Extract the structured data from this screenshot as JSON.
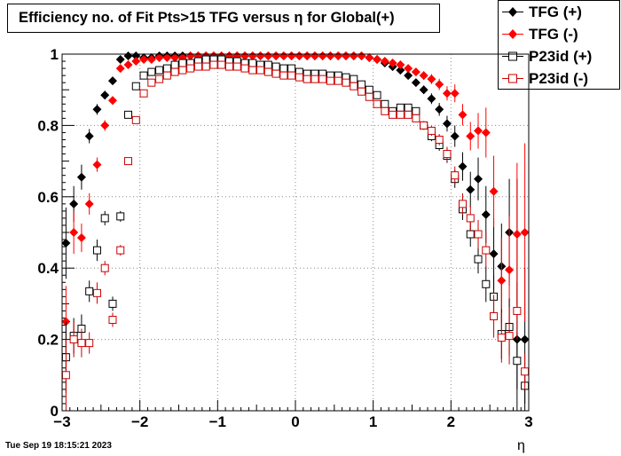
{
  "title": "Efficiency no. of Fit Pts>15 TFG versus η for Global(+)",
  "timestamp": "Tue Sep 19 18:15:21 2023",
  "chart_data": {
    "type": "scatter",
    "title": "Efficiency no. of Fit Pts>15 TFG versus η for Global(+)",
    "xlabel": "η",
    "ylabel": "",
    "xlim": [
      -3,
      3
    ],
    "ylim": [
      0,
      1.0
    ],
    "xticks": [
      "−3",
      "−2",
      "−1",
      "0",
      "1",
      "2",
      "3"
    ],
    "yticks": [
      "0",
      "0.2",
      "0.4",
      "0.6",
      "0.8",
      "1"
    ],
    "grid": true,
    "legend_position": "top-right",
    "series": [
      {
        "name": "TFG (+)",
        "marker": "filled-diamond",
        "color": "#000000",
        "x": [
          -2.95,
          -2.85,
          -2.75,
          -2.65,
          -2.55,
          -2.45,
          -2.35,
          -2.25,
          -2.15,
          -2.05,
          -1.95,
          -1.85,
          -1.75,
          -1.65,
          -1.55,
          -1.45,
          -1.35,
          -1.25,
          -1.15,
          -1.05,
          -0.95,
          -0.85,
          -0.75,
          -0.65,
          -0.55,
          -0.45,
          -0.35,
          -0.25,
          -0.15,
          -0.05,
          0.05,
          0.15,
          0.25,
          0.35,
          0.45,
          0.55,
          0.65,
          0.75,
          0.85,
          0.95,
          1.05,
          1.15,
          1.25,
          1.35,
          1.45,
          1.55,
          1.65,
          1.75,
          1.85,
          1.95,
          2.05,
          2.15,
          2.25,
          2.35,
          2.45,
          2.55,
          2.65,
          2.75,
          2.85,
          2.95
        ],
        "y": [
          0.47,
          0.58,
          0.655,
          0.77,
          0.845,
          0.885,
          0.925,
          0.985,
          0.995,
          0.995,
          0.99,
          0.99,
          0.995,
          0.995,
          0.995,
          0.995,
          0.995,
          0.995,
          0.995,
          0.995,
          0.995,
          0.995,
          0.995,
          0.995,
          0.995,
          0.995,
          0.995,
          0.995,
          0.995,
          0.995,
          0.995,
          0.995,
          0.995,
          0.995,
          0.995,
          0.995,
          0.995,
          0.995,
          0.995,
          0.99,
          0.985,
          0.975,
          0.965,
          0.955,
          0.94,
          0.92,
          0.9,
          0.875,
          0.845,
          0.805,
          0.77,
          0.685,
          0.62,
          0.65,
          0.55,
          0.44,
          0.405,
          0.5,
          0.2,
          0.2
        ],
        "err": [
          0.1,
          0.05,
          0.035,
          0.02,
          0.015,
          0.012,
          0.01,
          0.006,
          0.004,
          0.003,
          0.003,
          0.003,
          0.003,
          0.003,
          0.003,
          0.003,
          0.003,
          0.003,
          0.003,
          0.003,
          0.003,
          0.003,
          0.003,
          0.003,
          0.003,
          0.003,
          0.003,
          0.003,
          0.003,
          0.003,
          0.003,
          0.003,
          0.003,
          0.003,
          0.003,
          0.003,
          0.003,
          0.003,
          0.003,
          0.003,
          0.004,
          0.005,
          0.006,
          0.007,
          0.008,
          0.01,
          0.012,
          0.015,
          0.018,
          0.022,
          0.03,
          0.04,
          0.05,
          0.06,
          0.08,
          0.1,
          0.12,
          0.15,
          0.45,
          0.2
        ]
      },
      {
        "name": "TFG (-)",
        "marker": "filled-diamond",
        "color": "#ff0000",
        "x": [
          -2.95,
          -2.85,
          -2.75,
          -2.65,
          -2.55,
          -2.45,
          -2.35,
          -2.25,
          -2.15,
          -2.05,
          -1.95,
          -1.85,
          -1.75,
          -1.65,
          -1.55,
          -1.45,
          -1.35,
          -1.25,
          -1.15,
          -1.05,
          -0.95,
          -0.85,
          -0.75,
          -0.65,
          -0.55,
          -0.45,
          -0.35,
          -0.25,
          -0.15,
          -0.05,
          0.05,
          0.15,
          0.25,
          0.35,
          0.45,
          0.55,
          0.65,
          0.75,
          0.85,
          0.95,
          1.05,
          1.15,
          1.25,
          1.35,
          1.45,
          1.55,
          1.65,
          1.75,
          1.85,
          1.95,
          2.05,
          2.15,
          2.25,
          2.35,
          2.45,
          2.55,
          2.65,
          2.75,
          2.85,
          2.95
        ],
        "y": [
          0.25,
          0.5,
          0.485,
          0.58,
          0.69,
          0.8,
          0.87,
          0.96,
          0.97,
          0.98,
          0.985,
          0.985,
          0.99,
          0.99,
          0.99,
          0.99,
          0.995,
          0.995,
          0.995,
          0.995,
          0.995,
          0.995,
          0.995,
          0.995,
          0.995,
          0.995,
          0.995,
          0.995,
          0.995,
          0.995,
          0.995,
          0.995,
          0.995,
          0.995,
          0.995,
          0.995,
          0.995,
          0.995,
          0.995,
          0.99,
          0.985,
          0.98,
          0.975,
          0.97,
          0.96,
          0.95,
          0.94,
          0.93,
          0.915,
          0.89,
          0.89,
          0.83,
          0.77,
          0.785,
          0.78,
          0.615,
          0.365,
          0.395,
          0.495,
          0.5
        ],
        "err": [
          0.1,
          0.06,
          0.04,
          0.03,
          0.02,
          0.015,
          0.012,
          0.007,
          0.005,
          0.004,
          0.003,
          0.003,
          0.003,
          0.003,
          0.003,
          0.003,
          0.003,
          0.003,
          0.003,
          0.003,
          0.003,
          0.003,
          0.003,
          0.003,
          0.003,
          0.003,
          0.003,
          0.003,
          0.003,
          0.003,
          0.003,
          0.003,
          0.003,
          0.003,
          0.003,
          0.003,
          0.003,
          0.003,
          0.003,
          0.003,
          0.004,
          0.005,
          0.006,
          0.007,
          0.008,
          0.01,
          0.012,
          0.014,
          0.016,
          0.02,
          0.025,
          0.03,
          0.04,
          0.05,
          0.07,
          0.1,
          0.12,
          0.15,
          0.2,
          0.25
        ]
      },
      {
        "name": "P23id (+)",
        "marker": "open-square",
        "color": "#000000",
        "x": [
          -2.95,
          -2.85,
          -2.75,
          -2.65,
          -2.55,
          -2.45,
          -2.35,
          -2.25,
          -2.15,
          -2.05,
          -1.95,
          -1.85,
          -1.75,
          -1.65,
          -1.55,
          -1.45,
          -1.35,
          -1.25,
          -1.15,
          -1.05,
          -0.95,
          -0.85,
          -0.75,
          -0.65,
          -0.55,
          -0.45,
          -0.35,
          -0.25,
          -0.15,
          -0.05,
          0.05,
          0.15,
          0.25,
          0.35,
          0.45,
          0.55,
          0.65,
          0.75,
          0.85,
          0.95,
          1.05,
          1.15,
          1.25,
          1.35,
          1.45,
          1.55,
          1.65,
          1.75,
          1.85,
          1.95,
          2.05,
          2.15,
          2.25,
          2.35,
          2.45,
          2.55,
          2.65,
          2.75,
          2.85,
          2.95
        ],
        "y": [
          0.15,
          0.21,
          0.23,
          0.335,
          0.45,
          0.54,
          0.3,
          0.545,
          0.83,
          0.91,
          0.94,
          0.95,
          0.955,
          0.96,
          0.97,
          0.975,
          0.975,
          0.98,
          0.985,
          0.985,
          0.985,
          0.98,
          0.98,
          0.975,
          0.975,
          0.97,
          0.97,
          0.965,
          0.96,
          0.96,
          0.95,
          0.945,
          0.945,
          0.945,
          0.94,
          0.94,
          0.935,
          0.93,
          0.915,
          0.9,
          0.885,
          0.86,
          0.84,
          0.85,
          0.85,
          0.84,
          0.8,
          0.77,
          0.745,
          0.715,
          0.65,
          0.565,
          0.495,
          0.425,
          0.355,
          0.32,
          0.215,
          0.235,
          0.14,
          0.07
        ],
        "err": [
          0.1,
          0.05,
          0.04,
          0.03,
          0.03,
          0.02,
          0.02,
          0.015,
          0.01,
          0.008,
          0.006,
          0.005,
          0.004,
          0.004,
          0.003,
          0.003,
          0.003,
          0.003,
          0.003,
          0.003,
          0.003,
          0.003,
          0.003,
          0.003,
          0.003,
          0.003,
          0.003,
          0.003,
          0.003,
          0.003,
          0.003,
          0.003,
          0.003,
          0.003,
          0.003,
          0.003,
          0.004,
          0.004,
          0.005,
          0.005,
          0.006,
          0.007,
          0.008,
          0.008,
          0.009,
          0.01,
          0.012,
          0.014,
          0.016,
          0.02,
          0.025,
          0.03,
          0.035,
          0.04,
          0.05,
          0.06,
          0.07,
          0.08,
          0.08,
          0.05
        ]
      },
      {
        "name": "P23id (-)",
        "marker": "open-square",
        "color": "#cc0000",
        "x": [
          -2.95,
          -2.85,
          -2.75,
          -2.65,
          -2.55,
          -2.45,
          -2.35,
          -2.25,
          -2.15,
          -2.05,
          -1.95,
          -1.85,
          -1.75,
          -1.65,
          -1.55,
          -1.45,
          -1.35,
          -1.25,
          -1.15,
          -1.05,
          -0.95,
          -0.85,
          -0.75,
          -0.65,
          -0.55,
          -0.45,
          -0.35,
          -0.25,
          -0.15,
          -0.05,
          0.05,
          0.15,
          0.25,
          0.35,
          0.45,
          0.55,
          0.65,
          0.75,
          0.85,
          0.95,
          1.05,
          1.15,
          1.25,
          1.35,
          1.45,
          1.55,
          1.65,
          1.75,
          1.85,
          1.95,
          2.05,
          2.15,
          2.25,
          2.35,
          2.45,
          2.55,
          2.65,
          2.75,
          2.85,
          2.95
        ],
        "y": [
          0.1,
          0.2,
          0.19,
          0.19,
          0.33,
          0.4,
          0.255,
          0.45,
          0.7,
          0.815,
          0.89,
          0.92,
          0.93,
          0.94,
          0.95,
          0.955,
          0.96,
          0.965,
          0.965,
          0.97,
          0.97,
          0.965,
          0.965,
          0.96,
          0.955,
          0.955,
          0.95,
          0.945,
          0.94,
          0.94,
          0.935,
          0.93,
          0.93,
          0.93,
          0.925,
          0.925,
          0.92,
          0.91,
          0.895,
          0.88,
          0.86,
          0.84,
          0.83,
          0.83,
          0.83,
          0.82,
          0.8,
          0.785,
          0.76,
          0.72,
          0.66,
          0.58,
          0.54,
          0.495,
          0.45,
          0.265,
          0.205,
          0.21,
          0.28,
          0.11
        ],
        "err": [
          0.1,
          0.05,
          0.04,
          0.03,
          0.03,
          0.02,
          0.02,
          0.015,
          0.01,
          0.008,
          0.006,
          0.005,
          0.004,
          0.004,
          0.003,
          0.003,
          0.003,
          0.003,
          0.003,
          0.003,
          0.003,
          0.003,
          0.003,
          0.003,
          0.003,
          0.003,
          0.003,
          0.003,
          0.003,
          0.003,
          0.003,
          0.003,
          0.003,
          0.003,
          0.003,
          0.003,
          0.004,
          0.004,
          0.005,
          0.005,
          0.006,
          0.007,
          0.008,
          0.008,
          0.009,
          0.01,
          0.012,
          0.014,
          0.016,
          0.02,
          0.025,
          0.03,
          0.035,
          0.04,
          0.05,
          0.06,
          0.07,
          0.08,
          0.08,
          0.05
        ]
      }
    ]
  }
}
